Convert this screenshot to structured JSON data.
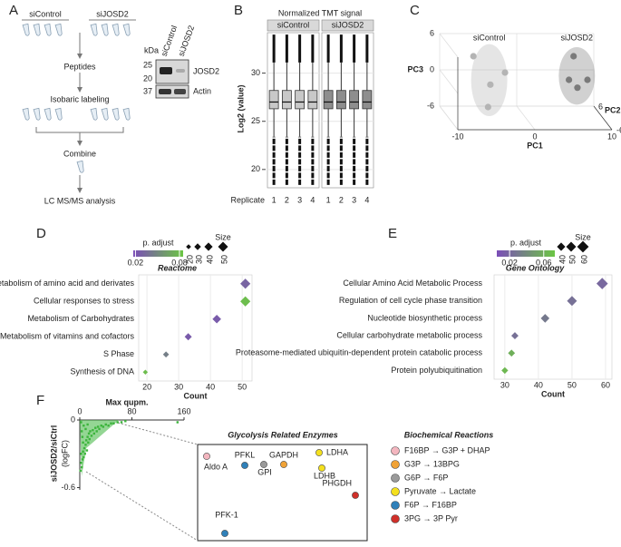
{
  "panel_labels": [
    "A",
    "B",
    "C",
    "D",
    "E",
    "F"
  ],
  "workflow": {
    "groups": [
      "siControl",
      "siJOSD2"
    ],
    "steps": [
      "Peptides",
      "Isobaric labeling",
      "Combine",
      "LC MS/MS analysis"
    ]
  },
  "western_blot": {
    "unit": "kDa",
    "markers": [
      "25",
      "20",
      "37"
    ],
    "lanes": [
      "siControl",
      "siJOSD2"
    ],
    "bands": [
      "JOSD2",
      "Actin"
    ]
  },
  "chart_data": [
    {
      "type": "box",
      "title": "Normalized TMT signal",
      "y_label": "Log2 (value)",
      "x_label": "Replicate",
      "categories": [
        "1",
        "2",
        "3",
        "4"
      ],
      "ylim": [
        18.1,
        34.2
      ],
      "yticks": [
        20,
        25,
        30
      ],
      "grid": true,
      "facets": [
        {
          "name": "siControl",
          "color": "#c8c8c8",
          "q1": [
            26.3,
            26.3,
            26.3,
            26.3
          ],
          "median": [
            27,
            27,
            27,
            27
          ],
          "q3": [
            28.2,
            28.2,
            28.2,
            28.2
          ],
          "whisker_low": [
            23.4,
            23.4,
            23.4,
            23.4
          ],
          "whisker_high": [
            31.1,
            31.1,
            31.1,
            31.1
          ],
          "min": [
            18.4,
            18.4,
            18.4,
            18.4
          ],
          "max": [
            34,
            34,
            34,
            34
          ]
        },
        {
          "name": "siJOSD2",
          "color": "#8e8e8e",
          "q1": [
            26.3,
            26.3,
            26.3,
            26.3
          ],
          "median": [
            27,
            27,
            27,
            27
          ],
          "q3": [
            28.2,
            28.2,
            28.2,
            28.2
          ],
          "whisker_low": [
            23.4,
            23.4,
            23.4,
            23.4
          ],
          "whisker_high": [
            31.1,
            31.1,
            31.1,
            31.1
          ],
          "min": [
            18.4,
            18.4,
            18.4,
            18.4
          ],
          "max": [
            34,
            34,
            34,
            34
          ]
        }
      ]
    },
    {
      "type": "scatter3d",
      "x_label": "PC1",
      "y_label": "PC2",
      "z_label": "PC3",
      "xlim": [
        -10,
        10
      ],
      "xticks": [
        -10,
        0,
        10
      ],
      "ylim": [
        -6,
        6
      ],
      "yticks": [
        -6,
        6
      ],
      "zlim": [
        -6,
        6
      ],
      "zticks": [
        -6,
        0,
        6
      ],
      "series": [
        {
          "name": "siControl",
          "color": "#b4b4b4",
          "x": [
            -6.8,
            -4.6,
            -2.7,
            -4.9
          ],
          "y": [
            0,
            0,
            0,
            0
          ],
          "z": [
            4.2,
            -0.5,
            1.5,
            -4.2
          ]
        },
        {
          "name": "siJOSD2",
          "color": "#7a7a7a",
          "x": [
            6.2,
            5.6,
            8.0,
            6.7
          ],
          "y": [
            0,
            0,
            0,
            0
          ],
          "z": [
            4.2,
            0.3,
            0.3,
            -1.0
          ]
        }
      ]
    },
    {
      "type": "dot",
      "title": "Reactome",
      "x_label": "Count",
      "categories": [
        "Metabolism of amino acid and derivates",
        "Cellular responses to stress",
        "Metabolism of Carbohydrates",
        "Metabolism of vitamins and cofactors",
        "S Phase",
        "Synthesis of DNA"
      ],
      "label_colors": [
        "#e3231c",
        "#222222",
        "#e3231c",
        "#222222",
        "#222222",
        "#222222"
      ],
      "values": [
        51,
        51,
        42,
        33,
        26,
        19.5
      ],
      "p_adjust": [
        0.03,
        0.08,
        0.025,
        0.025,
        0.045,
        0.08
      ],
      "color_label": "p. adjust",
      "colorscale": [
        "#7b4db8",
        "#6cc644"
      ],
      "clim": [
        0.017,
        0.085
      ],
      "cticks": [
        0.02,
        0.08
      ],
      "size_label": "Size",
      "size_legend": [
        20,
        30,
        40,
        50
      ],
      "xlim": [
        17.4,
        53.1
      ],
      "xticks": [
        20,
        30,
        40,
        50
      ],
      "grid": true
    },
    {
      "type": "dot",
      "title": "Gene Ontology",
      "x_label": "Count",
      "categories": [
        "Cellular Amino Acid Metabolic Process",
        "Regulation of cell cycle phase transition",
        "Nucleotide biosynthetic process",
        "Cellular carbohydrate metabolic process",
        "Proteasome-mediated ubiquitin-dependent protein catabolic process",
        "Protein polyubiquitination"
      ],
      "label_colors": [
        "#e3231c",
        "#222222",
        "#222222",
        "#e3231c",
        "#e3231c",
        "#e3231c"
      ],
      "values": [
        59,
        50,
        42,
        33,
        32,
        30
      ],
      "p_adjust": [
        0.02,
        0.025,
        0.03,
        0.025,
        0.06,
        0.065
      ],
      "color_label": "p. adjust",
      "colorscale": [
        "#7b4db8",
        "#6cc644"
      ],
      "clim": [
        0.005,
        0.073
      ],
      "cticks": [
        0.02,
        0.06
      ],
      "size_label": "Size",
      "size_legend": [
        40,
        50,
        60
      ],
      "xlim": [
        26.8,
        61.9
      ],
      "xticks": [
        30,
        40,
        50,
        60
      ],
      "grid": true
    },
    {
      "type": "scatter",
      "x_label": "Max qupm.",
      "y_label": "siJOSD2/siCtrl",
      "y_unit_label": "(logFC)",
      "color": "#3cb43c",
      "xlim": [
        0,
        160
      ],
      "xticks": [
        0,
        80,
        160
      ],
      "ylim": [
        -0.62,
        0
      ],
      "yticks": [
        0,
        -0.6
      ],
      "x": [
        1,
        2,
        2,
        3,
        4,
        5,
        5,
        6,
        7,
        8,
        9,
        10,
        11,
        12,
        13,
        14,
        15,
        16,
        18,
        20,
        22,
        24,
        26,
        28,
        30,
        33,
        36,
        40,
        44,
        48,
        52,
        58,
        64,
        70,
        3,
        6,
        9,
        12,
        2,
        4,
        150
      ],
      "values": [
        -0.45,
        -0.38,
        -0.3,
        -0.42,
        -0.35,
        -0.28,
        -0.2,
        -0.33,
        -0.25,
        -0.3,
        -0.22,
        -0.18,
        -0.27,
        -0.15,
        -0.2,
        -0.12,
        -0.17,
        -0.1,
        -0.14,
        -0.09,
        -0.12,
        -0.07,
        -0.1,
        -0.06,
        -0.08,
        -0.05,
        -0.06,
        -0.04,
        -0.05,
        -0.03,
        -0.03,
        -0.02,
        -0.02,
        -0.01,
        -0.1,
        -0.05,
        -0.08,
        -0.04,
        -0.02,
        -0.15,
        -0.02
      ]
    }
  ],
  "enzymes": {
    "title": "Glycolysis Related Enzymes",
    "items": [
      {
        "name": "Aldo A",
        "color": "#f3b6bf"
      },
      {
        "name": "PFKL",
        "color": "#2f80b9"
      },
      {
        "name": "GPI",
        "color": "#9a9a9a"
      },
      {
        "name": "GAPDH",
        "color": "#f0a236"
      },
      {
        "name": "LDHA",
        "color": "#f4e01e"
      },
      {
        "name": "LDHB",
        "color": "#f4e01e"
      },
      {
        "name": "PHGDH",
        "color": "#d0302a"
      },
      {
        "name": "PFK-1",
        "color": "#2f80b9"
      }
    ]
  },
  "reactions": {
    "title": "Biochemical Reactions",
    "items": [
      {
        "text": "F16BP → G3P + DHAP",
        "color": "#f3b6bf"
      },
      {
        "text": "G3P → 13BPG",
        "color": "#f0a236"
      },
      {
        "text": "G6P → F6P",
        "color": "#9a9a9a"
      },
      {
        "text": "Pyruvate → Lactate",
        "color": "#f4e01e"
      },
      {
        "text": "F6P → F16BP",
        "color": "#2f80b9"
      },
      {
        "text": "3PG → 3P Pyr",
        "color": "#d0302a"
      }
    ]
  }
}
